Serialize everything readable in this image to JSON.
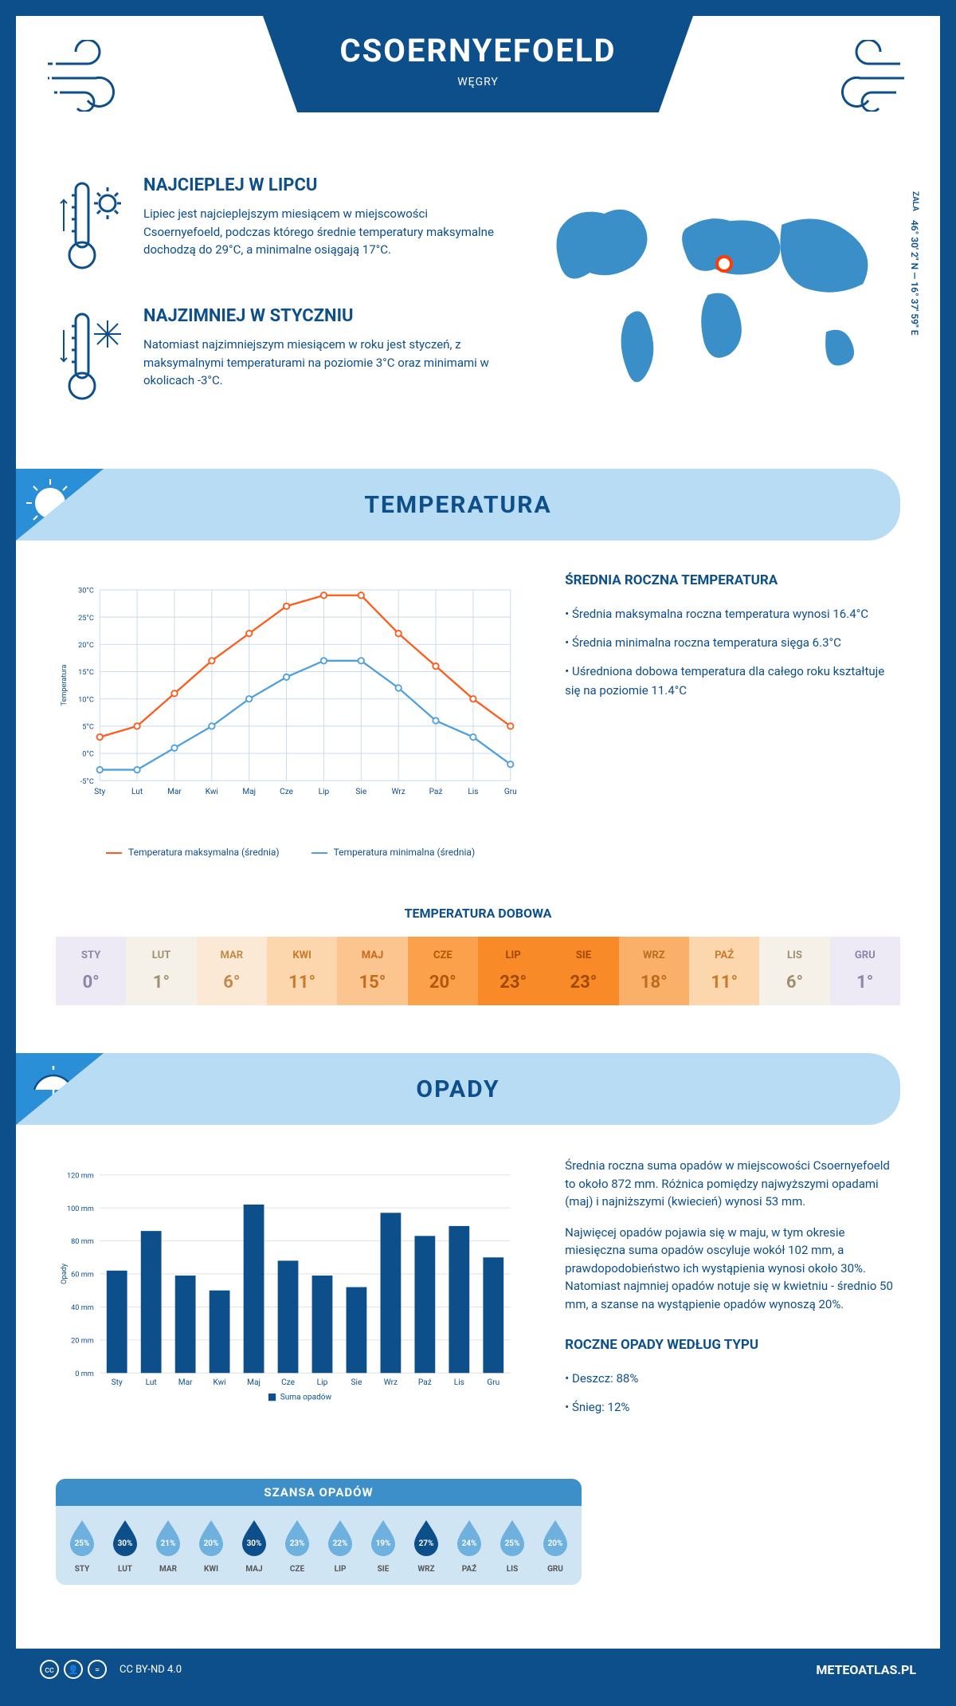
{
  "header": {
    "title": "CSOERNYEFOELD",
    "country": "WĘGRY"
  },
  "colors": {
    "primary": "#0d4f8b",
    "headerBanner": "#b8dcf4",
    "cornerBlue": "#2b8fd8",
    "maxLine": "#ff5a1a",
    "minLine": "#4fa0dd",
    "barFill": "#0d4f8b",
    "dropLight": "#6eb0de",
    "dropDark": "#0d4f8b",
    "grid": "#c7d9eb"
  },
  "intro": {
    "warm": {
      "title": "NAJCIEPLEJ W LIPCU",
      "text": "Lipiec jest najcieplejszym miesiącem w miejscowości Csoernyefoeld, podczas którego średnie temperatury maksymalne dochodzą do 29°C, a minimalne osiągają 17°C."
    },
    "cold": {
      "title": "NAJZIMNIEJ W STYCZNIU",
      "text": "Natomiast najzimniejszym miesiącem w roku jest styczeń, z maksymalnymi temperaturami na poziomie 3°C oraz minimami w okolicach -3°C."
    },
    "coords": "46° 30' 2\" N — 16° 37' 59\" E",
    "region": "ZALA"
  },
  "temperature": {
    "sectionTitle": "TEMPERATURA",
    "yTicks": [
      "30°C",
      "25°C",
      "20°C",
      "15°C",
      "10°C",
      "5°C",
      "0°C",
      "-5°C"
    ],
    "months": [
      "Sty",
      "Lut",
      "Mar",
      "Kwi",
      "Maj",
      "Cze",
      "Lip",
      "Sie",
      "Wrz",
      "Paź",
      "Lis",
      "Gru"
    ],
    "maxSeries": [
      3,
      5,
      11,
      17,
      22,
      27,
      29,
      29,
      22,
      16,
      10,
      5
    ],
    "minSeries": [
      -3,
      -3,
      1,
      5,
      10,
      14,
      17,
      17,
      12,
      6,
      3,
      -2
    ],
    "legendMax": "Temperatura maksymalna (średnia)",
    "legendMin": "Temperatura minimalna (średnia)",
    "axisLabel": "Temperatura",
    "sideTitle": "ŚREDNIA ROCZNA TEMPERATURA",
    "bullets": [
      "Średnia maksymalna roczna temperatura wynosi 16.4°C",
      "Średnia minimalna roczna temperatura sięga 6.3°C",
      "Uśredniona dobowa temperatura dla całego roku kształtuje się na poziomie 11.4°C"
    ],
    "dailyTitle": "TEMPERATURA DOBOWA",
    "dailyMonths": [
      "STY",
      "LUT",
      "MAR",
      "KWI",
      "MAJ",
      "CZE",
      "LIP",
      "SIE",
      "WRZ",
      "PAŹ",
      "LIS",
      "GRU"
    ],
    "dailyValues": [
      "0°",
      "1°",
      "6°",
      "11°",
      "15°",
      "20°",
      "23°",
      "23°",
      "18°",
      "11°",
      "6°",
      "1°"
    ],
    "dailyBg": [
      "#eeeaf5",
      "#f5f0e8",
      "#fbe9d6",
      "#fcd7ae",
      "#fcc590",
      "#fba14c",
      "#f88b28",
      "#f88b28",
      "#fbb06a",
      "#fcd7ae",
      "#f5f0e8",
      "#eeeaf5"
    ],
    "dailyFg": [
      "#8b86a7",
      "#a09070",
      "#c28b4a",
      "#c97a2a",
      "#c46a18",
      "#b05808",
      "#a04800",
      "#a04800",
      "#bb6f1e",
      "#c97a2a",
      "#a09070",
      "#8b86a7"
    ]
  },
  "precipitation": {
    "sectionTitle": "OPADY",
    "yMax": 120,
    "yTicks": [
      120,
      100,
      80,
      60,
      40,
      20,
      0
    ],
    "months": [
      "Sty",
      "Lut",
      "Mar",
      "Kwi",
      "Maj",
      "Cze",
      "Lip",
      "Sie",
      "Wrz",
      "Paź",
      "Lis",
      "Gru"
    ],
    "values": [
      62,
      86,
      59,
      50,
      102,
      68,
      59,
      52,
      97,
      83,
      89,
      70
    ],
    "axisLabel": "Opady",
    "legendLabel": "Suma opadów",
    "para1": "Średnia roczna suma opadów w miejscowości Csoernyefoeld to około 872 mm. Różnica pomiędzy najwyższymi opadami (maj) i najniższymi (kwiecień) wynosi 53 mm.",
    "para2": "Najwięcej opadów pojawia się w maju, w tym okresie miesięczna suma opadów oscyluje wokół 102 mm, a prawdopodobieństwo ich wystąpienia wynosi około 30%. Natomiast najmniej opadów notuje się w kwietniu - średnio 50 mm, a szanse na wystąpienie opadów wynoszą 20%.",
    "dropTitle": "SZANSA OPADÓW",
    "dropMonths": [
      "STY",
      "LUT",
      "MAR",
      "KWI",
      "MAJ",
      "CZE",
      "LIP",
      "SIE",
      "WRZ",
      "PAŹ",
      "LIS",
      "GRU"
    ],
    "dropValues": [
      "25%",
      "30%",
      "21%",
      "20%",
      "30%",
      "23%",
      "22%",
      "19%",
      "27%",
      "24%",
      "25%",
      "20%"
    ],
    "dropDark": [
      false,
      true,
      false,
      false,
      true,
      false,
      false,
      false,
      true,
      false,
      false,
      false
    ],
    "typeTitle": "ROCZNE OPADY WEDŁUG TYPU",
    "typeBullets": [
      "Deszcz: 88%",
      "Śnieg: 12%"
    ]
  },
  "footer": {
    "license": "CC BY-ND 4.0",
    "site": "METEOATLAS.PL"
  }
}
